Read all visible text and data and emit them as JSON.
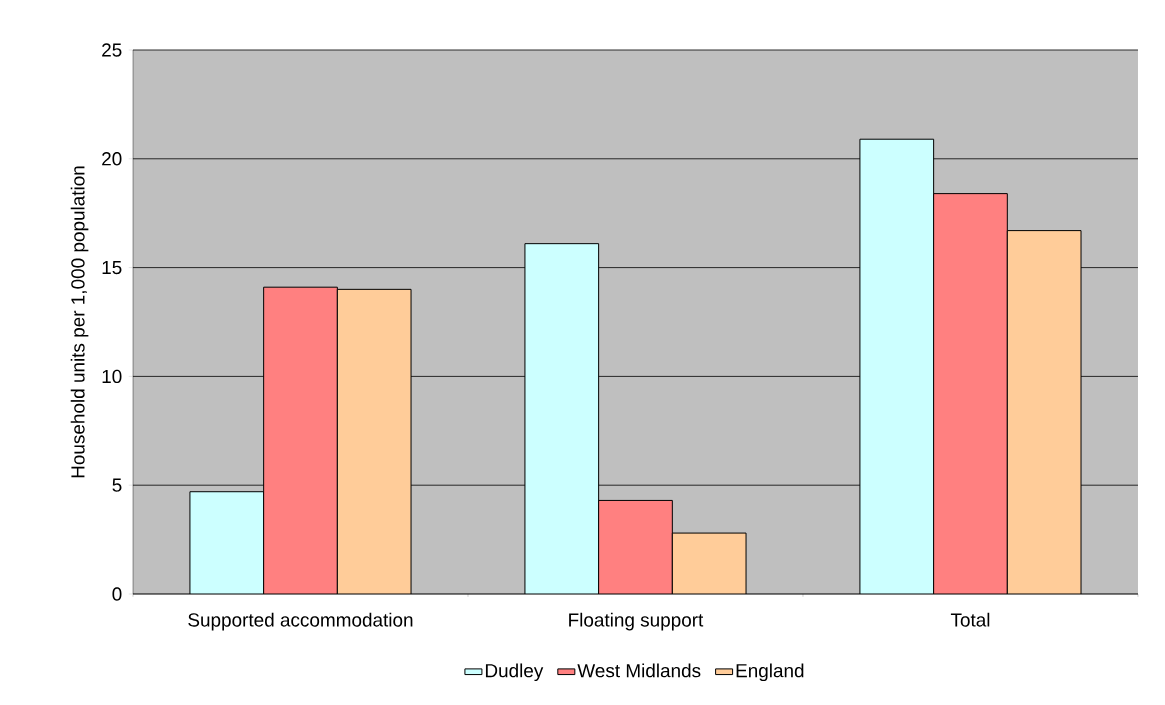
{
  "chart_data": {
    "type": "bar",
    "ylabel": "Household units per 1,000 population",
    "categories": [
      "Supported accommodation",
      "Floating support",
      "Total"
    ],
    "series": [
      {
        "name": "Dudley",
        "color": "#ccffff",
        "values": [
          4.7,
          16.1,
          20.9
        ]
      },
      {
        "name": "West Midlands",
        "color": "#ff8080",
        "values": [
          14.1,
          4.3,
          18.4
        ]
      },
      {
        "name": "England",
        "color": "#ffcc99",
        "values": [
          14.0,
          2.8,
          16.7
        ]
      }
    ],
    "ylim": [
      0,
      25
    ],
    "yticks": [
      0,
      5,
      10,
      15,
      20,
      25
    ],
    "grid": "y",
    "legend": "bottom"
  }
}
